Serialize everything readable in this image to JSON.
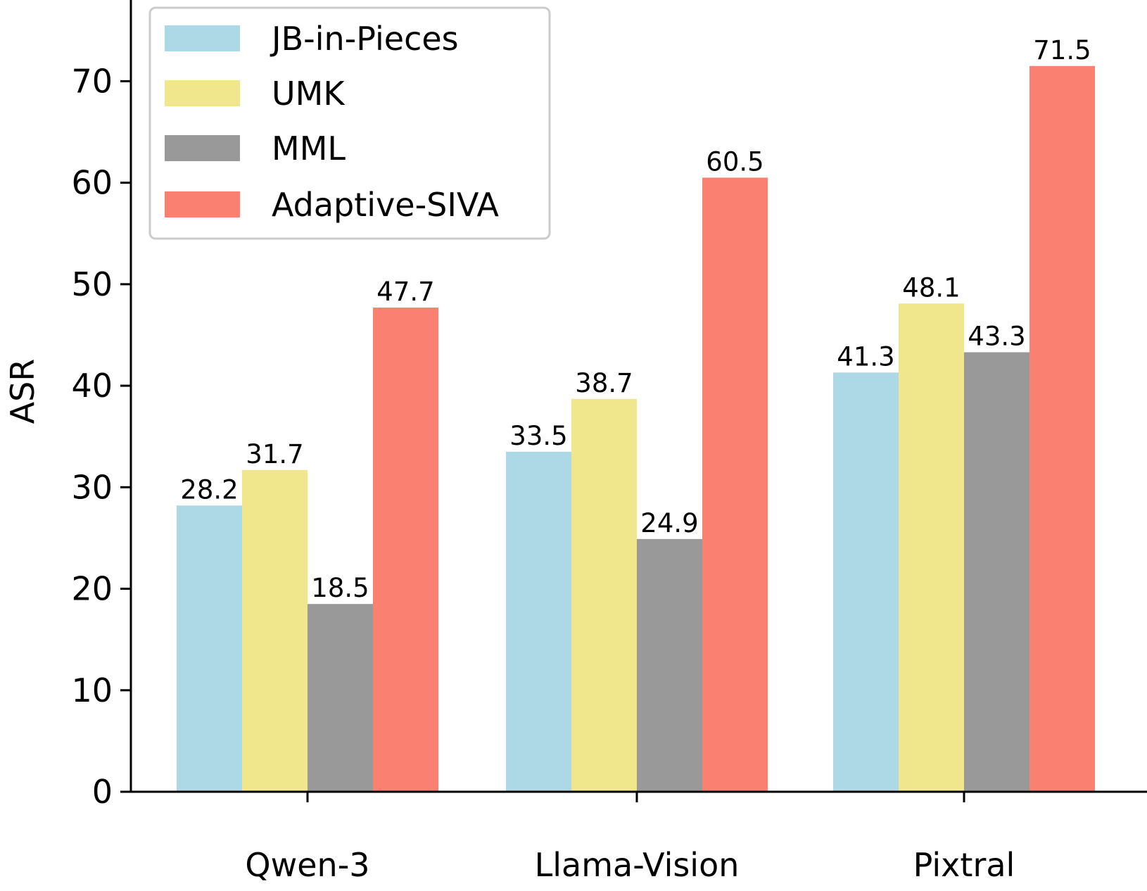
{
  "chart_data": {
    "type": "bar",
    "title": "",
    "xlabel": "",
    "ylabel": "ASR",
    "ylim": [
      0,
      78
    ],
    "yticks": [
      0,
      10,
      20,
      30,
      40,
      50,
      60,
      70
    ],
    "grid": false,
    "legend_position": "top-left",
    "categories": [
      "Qwen-3",
      "Llama-Vision",
      "Pixtral"
    ],
    "series": [
      {
        "name": "JB-in-Pieces",
        "color": "#add8e6",
        "values": [
          28.2,
          33.5,
          41.3
        ]
      },
      {
        "name": "UMK",
        "color": "#f0e68c",
        "values": [
          31.7,
          38.7,
          48.1
        ]
      },
      {
        "name": "MML",
        "color": "#999999",
        "values": [
          18.5,
          24.9,
          43.3
        ]
      },
      {
        "name": "Adaptive-SIVA",
        "color": "#fa8072",
        "values": [
          47.7,
          60.5,
          71.5
        ]
      }
    ]
  }
}
